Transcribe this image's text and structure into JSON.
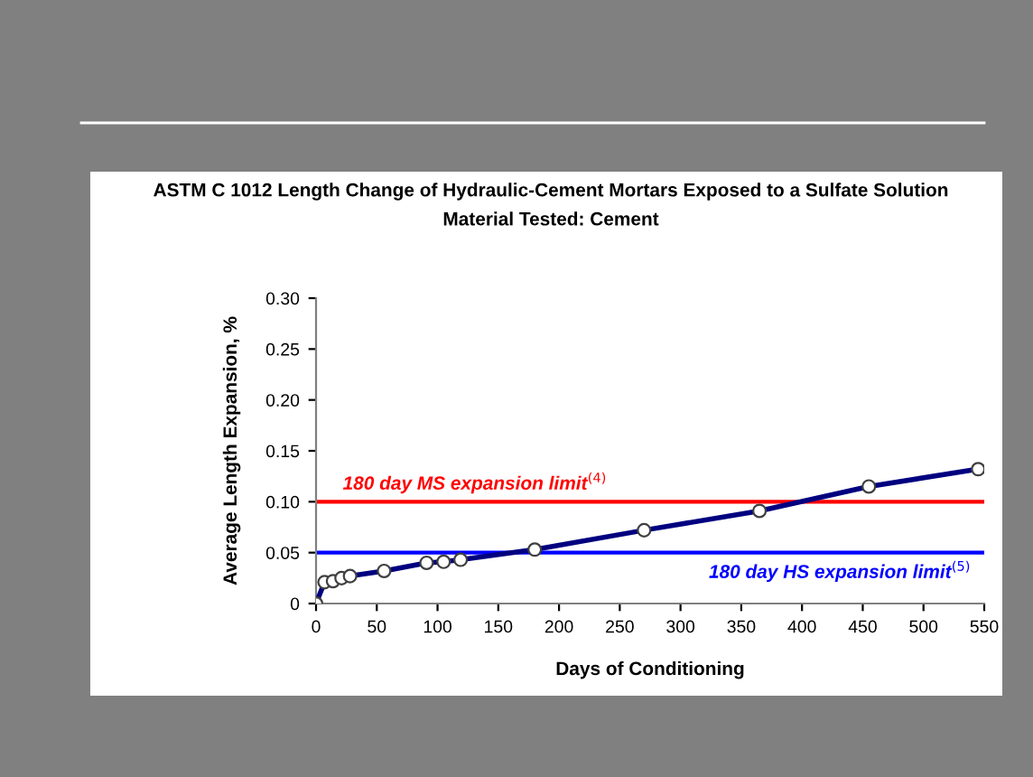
{
  "chart_data": {
    "type": "line",
    "title": "ASTM C 1012 Length Change of Hydraulic-Cement Mortars Exposed to a Sulfate Solution",
    "subtitle": "Material Tested: Cement",
    "xlabel": "Days of Conditioning",
    "ylabel": "Average Length Expansion, %",
    "series": [
      {
        "color": "#000080",
        "x": [
          0,
          7,
          14,
          21,
          28,
          56,
          91,
          105,
          119,
          180,
          270,
          365,
          455,
          545
        ],
        "values": [
          0,
          0.021,
          0.022,
          0.025,
          0.027,
          0.032,
          0.04,
          0.041,
          0.043,
          0.053,
          0.072,
          0.091,
          0.115,
          0.132
        ]
      }
    ],
    "xlim": [
      0,
      550
    ],
    "xticks": [
      0,
      50,
      100,
      150,
      200,
      250,
      300,
      350,
      400,
      450,
      500,
      550
    ],
    "ylim": [
      0,
      0.3
    ],
    "yticks": [
      {
        "value": 0,
        "label": "0"
      },
      {
        "value": 0.05,
        "label": "0.05"
      },
      {
        "value": 0.1,
        "label": "0.10"
      },
      {
        "value": 0.15,
        "label": "0.15"
      },
      {
        "value": 0.2,
        "label": "0.20"
      },
      {
        "value": 0.25,
        "label": "0.25"
      },
      {
        "value": 0.3,
        "label": "0.30"
      }
    ],
    "ref_lines": [
      {
        "axis": "y",
        "value": 0.1,
        "label": "180 day MS expansion limit$^{(4)}$",
        "color": "#ff0000"
      },
      {
        "axis": "y",
        "value": 0.05,
        "label": "180 day HS expansion limit$^{(5)}$",
        "color": "#0000ff"
      }
    ],
    "marker": "circle",
    "line_style": "solid",
    "grid": false,
    "legend": false
  }
}
